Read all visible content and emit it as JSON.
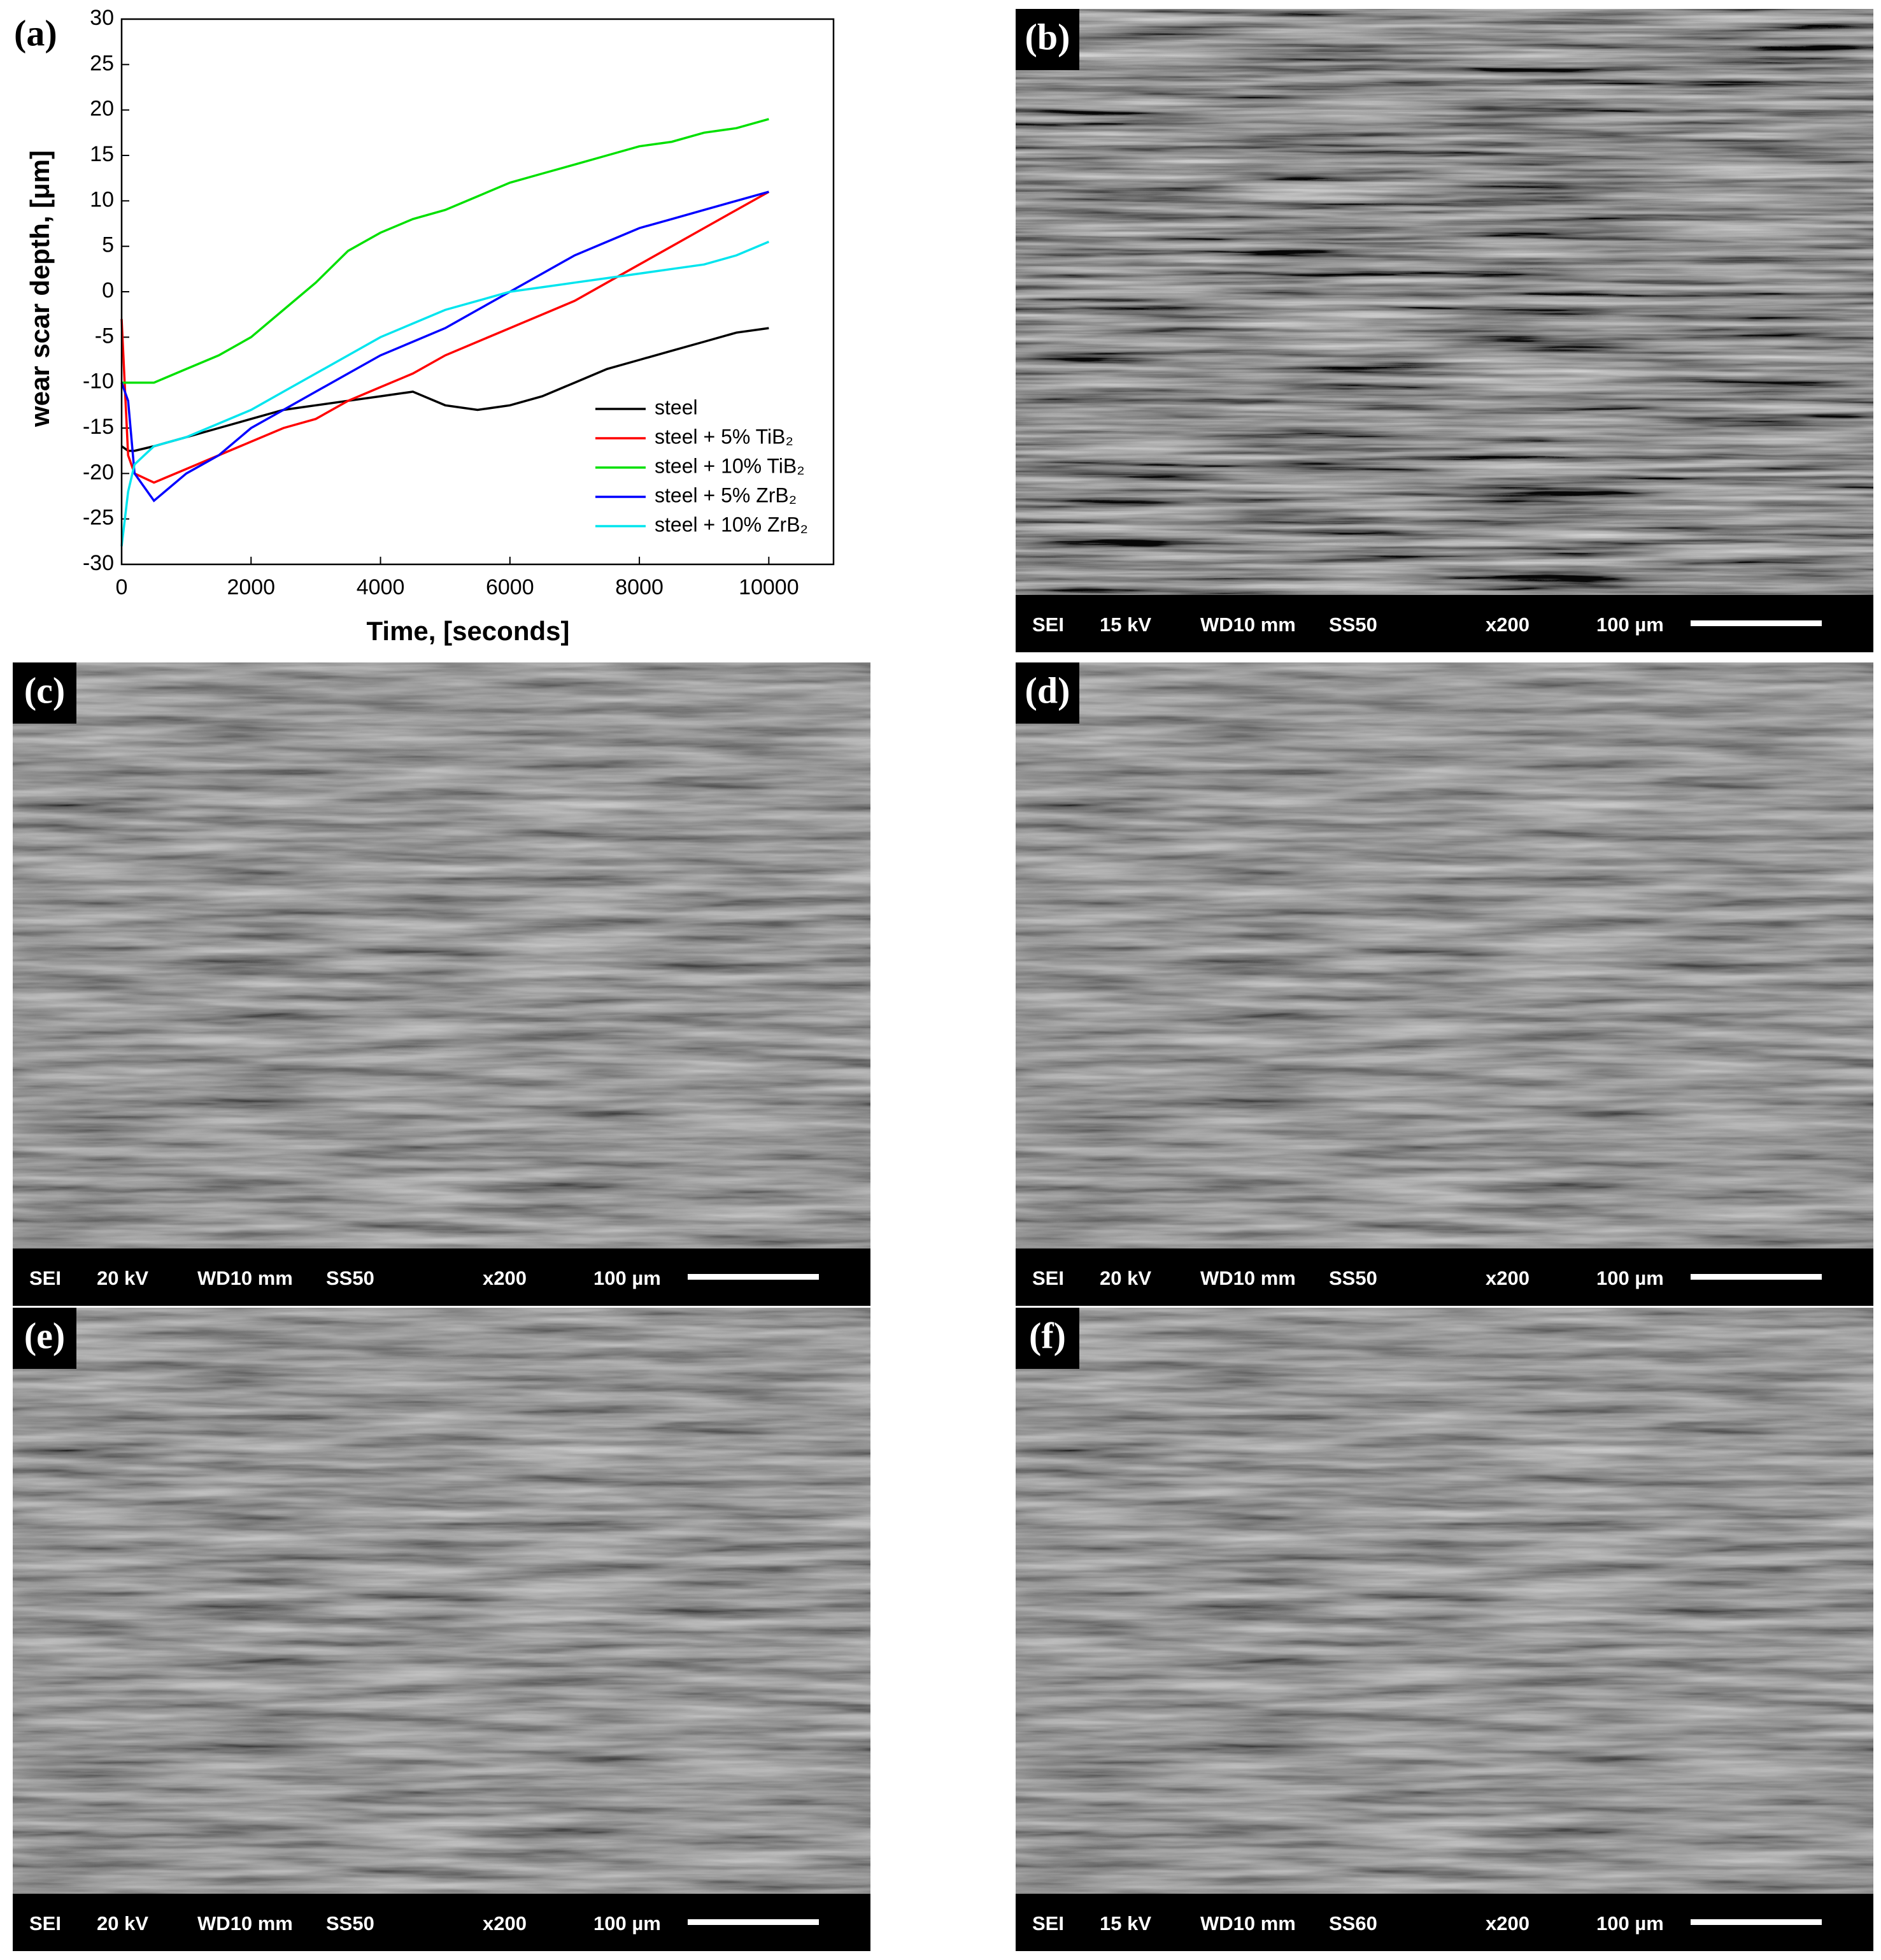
{
  "chart_data": {
    "type": "line",
    "panel_label": "(a)",
    "xlabel": "Time, [seconds]",
    "ylabel": "wear scar depth, [μm]",
    "xlim": [
      0,
      11000
    ],
    "ylim": [
      -30,
      30
    ],
    "xticks": [
      0,
      2000,
      4000,
      6000,
      8000,
      10000
    ],
    "yticks": [
      -30,
      -25,
      -20,
      -15,
      -10,
      -5,
      0,
      5,
      10,
      15,
      20,
      25,
      30
    ],
    "legend": "lower right",
    "x": [
      0,
      100,
      200,
      500,
      1000,
      1500,
      2000,
      2500,
      3000,
      3500,
      4000,
      4500,
      5000,
      5500,
      6000,
      6500,
      7000,
      7500,
      8000,
      8500,
      9000,
      9500,
      10000
    ],
    "series": [
      {
        "name": "steel",
        "color": "#000000",
        "values": [
          -17,
          -17.5,
          -17.5,
          -17,
          -16,
          -15,
          -14,
          -13,
          -12.5,
          -12,
          -11.5,
          -11,
          -12.5,
          -13,
          -12.5,
          -11.5,
          -10,
          -8.5,
          -7.5,
          -6.5,
          -5.5,
          -4.5,
          -4
        ]
      },
      {
        "name": "steel + 5% TiB₂",
        "color": "#ff0000",
        "values": [
          -3,
          -18,
          -20,
          -21,
          -19.5,
          -18,
          -16.5,
          -15,
          -14,
          -12,
          -10.5,
          -9,
          -7,
          -5.5,
          -4,
          -2.5,
          -1,
          1,
          3,
          5,
          7,
          9,
          11
        ]
      },
      {
        "name": "steel + 10% TiB₂",
        "color": "#00e000",
        "values": [
          -10,
          -10,
          -10,
          -10,
          -8.5,
          -7,
          -5,
          -2,
          1,
          4.5,
          6.5,
          8,
          9,
          10.5,
          12,
          13,
          14,
          15,
          16,
          16.5,
          17.5,
          18,
          19
        ]
      },
      {
        "name": "steel + 5% ZrB₂",
        "color": "#0000ff",
        "values": [
          -10,
          -12,
          -20,
          -23,
          -20,
          -18,
          -15,
          -13,
          -11,
          -9,
          -7,
          -5.5,
          -4,
          -2,
          0,
          2,
          4,
          5.5,
          7,
          8,
          9,
          10,
          11
        ]
      },
      {
        "name": "steel + 10% ZrB₂",
        "color": "#00e5ee",
        "values": [
          -28,
          -22,
          -19,
          -17,
          -16,
          -14.5,
          -13,
          -11,
          -9,
          -7,
          -5,
          -3.5,
          -2,
          -1,
          0,
          0.5,
          1,
          1.5,
          2,
          2.5,
          3,
          4,
          5.5
        ]
      }
    ]
  },
  "panels": [
    {
      "label": "(b)",
      "info": [
        "SEI",
        "15 kV",
        "WD10 mm",
        "SS50",
        "x200",
        "100 µm"
      ]
    },
    {
      "label": "(c)",
      "info": [
        "SEI",
        "20 kV",
        "WD10 mm",
        "SS50",
        "x200",
        "100 µm"
      ]
    },
    {
      "label": "(d)",
      "info": [
        "SEI",
        "20 kV",
        "WD10 mm",
        "SS50",
        "x200",
        "100 µm"
      ]
    },
    {
      "label": "(e)",
      "info": [
        "SEI",
        "20 kV",
        "WD10 mm",
        "SS50",
        "x200",
        "100 µm"
      ]
    },
    {
      "label": "(f)",
      "info": [
        "SEI",
        "15 kV",
        "WD10 mm",
        "SS60",
        "x200",
        "100 µm"
      ]
    }
  ]
}
